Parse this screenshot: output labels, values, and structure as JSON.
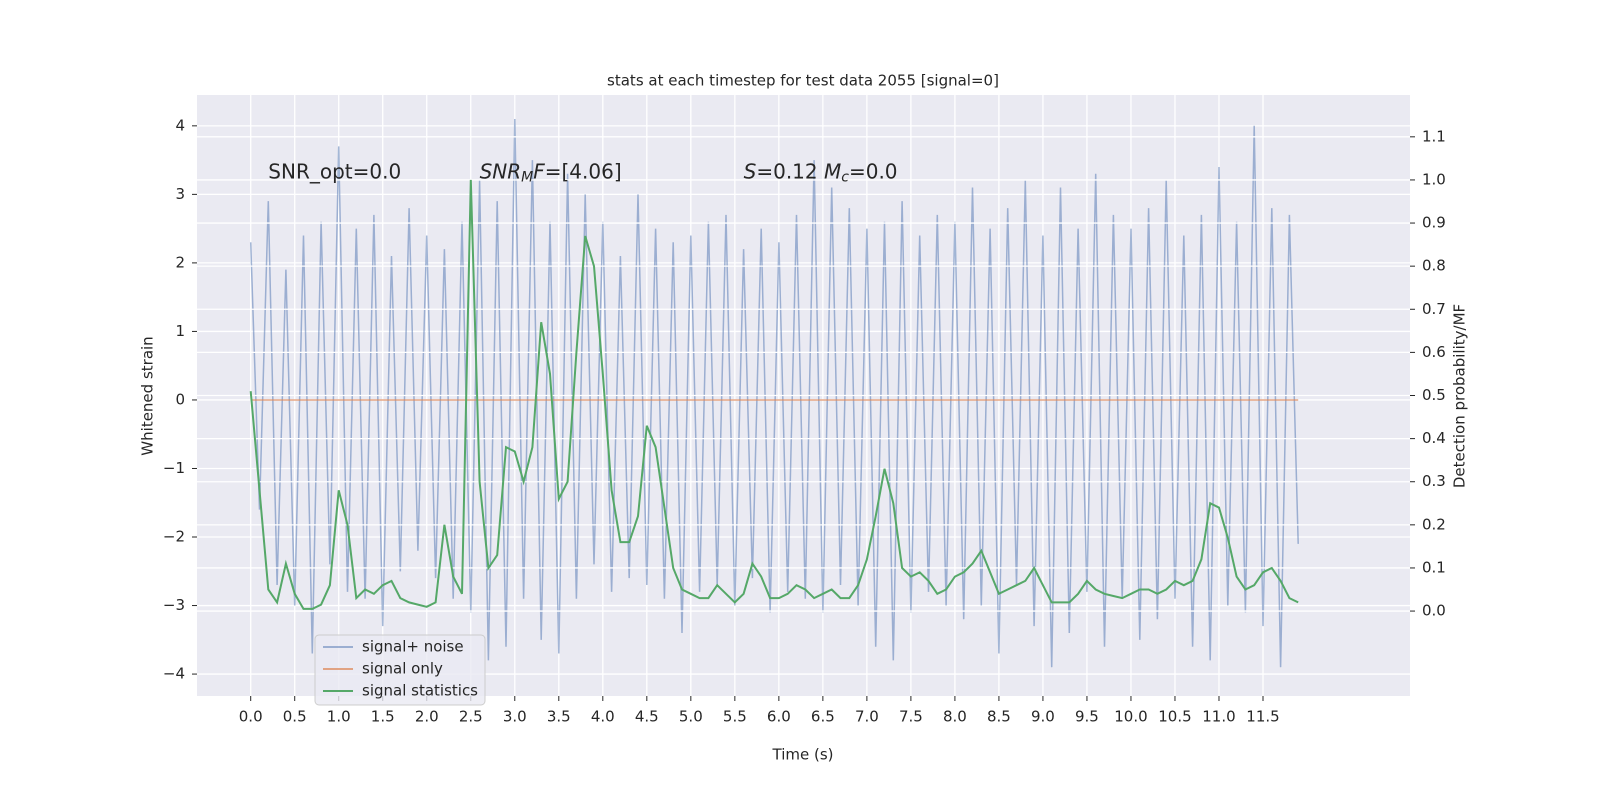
{
  "chart_data": {
    "type": "line",
    "title": "stats at each timestep for test data 2055 [signal=0]",
    "xlabel": "Time (s)",
    "ylabel": "Whitened strain",
    "y2label": "Detection probability/MF",
    "grid": true,
    "legend": "lower left",
    "background": "#eaeaf2",
    "xlim": [
      -0.61,
      13.17
    ],
    "ylim": [
      -4.32,
      4.45
    ],
    "y2lim": [
      -0.197,
      1.197
    ],
    "xticks": [
      {
        "value": 0,
        "label": "0.0"
      },
      {
        "value": 0.5,
        "label": "0.5"
      },
      {
        "value": 1,
        "label": "1.0"
      },
      {
        "value": 1.5,
        "label": "1.5"
      },
      {
        "value": 2,
        "label": "2.0"
      },
      {
        "value": 2.5,
        "label": "2.5"
      },
      {
        "value": 3,
        "label": "3.0"
      },
      {
        "value": 3.5,
        "label": "3.5"
      },
      {
        "value": 4,
        "label": "4.0"
      },
      {
        "value": 4.5,
        "label": "4.5"
      },
      {
        "value": 5,
        "label": "5.0"
      },
      {
        "value": 5.5,
        "label": "5.5"
      },
      {
        "value": 6,
        "label": "6.0"
      },
      {
        "value": 6.5,
        "label": "6.5"
      },
      {
        "value": 7,
        "label": "7.0"
      },
      {
        "value": 7.5,
        "label": "7.5"
      },
      {
        "value": 8,
        "label": "8.0"
      },
      {
        "value": 8.5,
        "label": "8.5"
      },
      {
        "value": 9,
        "label": "9.0"
      },
      {
        "value": 9.5,
        "label": "9.5"
      },
      {
        "value": 10,
        "label": "10.0"
      },
      {
        "value": 10.5,
        "label": "10.5"
      },
      {
        "value": 11,
        "label": "11.0"
      },
      {
        "value": 11.5,
        "label": "11.5"
      }
    ],
    "yticks": [
      {
        "value": -4,
        "label": "−4"
      },
      {
        "value": -3,
        "label": "−3"
      },
      {
        "value": -2,
        "label": "−2"
      },
      {
        "value": -1,
        "label": "−1"
      },
      0,
      1,
      2,
      3,
      4
    ],
    "y2ticks": [
      {
        "value": 0,
        "label": "0.0"
      },
      {
        "value": 0.1,
        "label": "0.1"
      },
      {
        "value": 0.2,
        "label": "0.2"
      },
      {
        "value": 0.3,
        "label": "0.3"
      },
      {
        "value": 0.4,
        "label": "0.4"
      },
      {
        "value": 0.5,
        "label": "0.5"
      },
      {
        "value": 0.6,
        "label": "0.6"
      },
      {
        "value": 0.7,
        "label": "0.7"
      },
      {
        "value": 0.8,
        "label": "0.8"
      },
      {
        "value": 0.9,
        "label": "0.9"
      },
      {
        "value": 1,
        "label": "1.0"
      },
      {
        "value": 1.1,
        "label": "1.1"
      }
    ],
    "annotations": [
      {
        "x": 0.2,
        "y": 3.32,
        "parts": [
          {
            "text": "SNR_opt=0.0",
            "style": "normal"
          }
        ]
      },
      {
        "x": 2.6,
        "y": 3.32,
        "parts": [
          {
            "text": "SNR",
            "style": "italic"
          },
          {
            "text": "M",
            "style": "sub"
          },
          {
            "text": "F=[4.06]",
            "style": "italic-first"
          }
        ]
      },
      {
        "x": 5.6,
        "y": 3.32,
        "parts": [
          {
            "text": "S",
            "style": "italic"
          },
          {
            "text": "=0.12   ",
            "style": "normal"
          },
          {
            "text": "M",
            "style": "italic"
          },
          {
            "text": "c",
            "style": "sub"
          },
          {
            "text": "=0.0",
            "style": "normal"
          }
        ]
      }
    ],
    "x": [
      0,
      0.1,
      0.2,
      0.3,
      0.4,
      0.5,
      0.6,
      0.7,
      0.8,
      0.9,
      1,
      1.1,
      1.2,
      1.3,
      1.4,
      1.5,
      1.6,
      1.7,
      1.8,
      1.9,
      2,
      2.1,
      2.2,
      2.3,
      2.4,
      2.5,
      2.6,
      2.7,
      2.8,
      2.9,
      3,
      3.1,
      3.2,
      3.3,
      3.4,
      3.5,
      3.6,
      3.7,
      3.8,
      3.9,
      4,
      4.1,
      4.2,
      4.3,
      4.4,
      4.5,
      4.6,
      4.7,
      4.8,
      4.9,
      5,
      5.1,
      5.2,
      5.3,
      5.4,
      5.5,
      5.6,
      5.7,
      5.8,
      5.9,
      6,
      6.1,
      6.2,
      6.3,
      6.4,
      6.5,
      6.6,
      6.7,
      6.8,
      6.9,
      7,
      7.1,
      7.2,
      7.3,
      7.4,
      7.5,
      7.6,
      7.7,
      7.8,
      7.9,
      8,
      8.1,
      8.2,
      8.3,
      8.4,
      8.5,
      8.6,
      8.7,
      8.8,
      8.9,
      9,
      9.1,
      9.2,
      9.3,
      9.4,
      9.5,
      9.6,
      9.7,
      9.8,
      9.9,
      10,
      10.1,
      10.2,
      10.3,
      10.4,
      10.5,
      10.6,
      10.7,
      10.8,
      10.9,
      11,
      11.1,
      11.2,
      11.3,
      11.4,
      11.5,
      11.6,
      11.7,
      11.8,
      11.9
    ],
    "series": [
      {
        "name": "signal+ noise",
        "color": "#4c72b0",
        "opacity": 0.5,
        "values": [
          2.3,
          -1.6,
          2.9,
          -2.7,
          1.9,
          -3.0,
          2.4,
          -3.7,
          2.6,
          -2.4,
          3.7,
          -2.8,
          2.5,
          -2.9,
          2.7,
          -3.3,
          2.1,
          -2.5,
          2.8,
          -2.2,
          2.4,
          -2.6,
          2.2,
          -2.9,
          2.6,
          -3.1,
          3.2,
          -3.8,
          2.9,
          -3.6,
          4.1,
          -2.9,
          3.5,
          -3.5,
          2.6,
          -3.7,
          3.3,
          -2.9,
          3.0,
          -2.4,
          2.6,
          -2.8,
          2.1,
          -2.6,
          3.0,
          -2.7,
          2.5,
          -2.9,
          2.3,
          -3.4,
          2.4,
          -2.8,
          2.6,
          -2.7,
          2.7,
          -3.0,
          2.2,
          -2.6,
          2.5,
          -3.1,
          2.3,
          -2.8,
          2.7,
          -2.9,
          3.5,
          -3.1,
          3.1,
          -2.7,
          2.8,
          -3.0,
          2.5,
          -3.6,
          2.6,
          -3.8,
          2.9,
          -3.1,
          2.4,
          -2.8,
          2.7,
          -3.0,
          2.6,
          -3.2,
          3.1,
          -3.0,
          2.5,
          -3.7,
          2.8,
          -2.7,
          3.2,
          -3.3,
          2.4,
          -3.9,
          3.1,
          -3.4,
          2.5,
          -2.8,
          3.3,
          -3.6,
          2.7,
          -2.9,
          2.5,
          -3.5,
          2.8,
          -3.2,
          3.2,
          -2.9,
          2.4,
          -3.6,
          2.7,
          -3.8,
          3.4,
          -3.0,
          2.6,
          -3.1,
          4.0,
          -3.3,
          2.8,
          -3.9,
          2.7,
          -2.1
        ]
      },
      {
        "name": "signal only",
        "color": "#dd8452",
        "opacity": 0.7,
        "values": [
          0,
          0,
          0,
          0,
          0,
          0,
          0,
          0,
          0,
          0,
          0,
          0,
          0,
          0,
          0,
          0,
          0,
          0,
          0,
          0,
          0,
          0,
          0,
          0,
          0,
          0,
          0,
          0,
          0,
          0,
          0,
          0,
          0,
          0,
          0,
          0,
          0,
          0,
          0,
          0,
          0,
          0,
          0,
          0,
          0,
          0,
          0,
          0,
          0,
          0,
          0,
          0,
          0,
          0,
          0,
          0,
          0,
          0,
          0,
          0,
          0,
          0,
          0,
          0,
          0,
          0,
          0,
          0,
          0,
          0,
          0,
          0,
          0,
          0,
          0,
          0,
          0,
          0,
          0,
          0,
          0,
          0,
          0,
          0,
          0,
          0,
          0,
          0,
          0,
          0,
          0,
          0,
          0,
          0,
          0,
          0,
          0,
          0,
          0,
          0,
          0,
          0,
          0,
          0,
          0,
          0,
          0,
          0,
          0,
          0,
          0,
          0,
          0,
          0,
          0,
          0,
          0,
          0,
          0,
          0
        ]
      },
      {
        "name": "signal statistics",
        "color": "#55a868",
        "opacity": 1,
        "axis": "y2",
        "values": [
          0.51,
          0.28,
          0.05,
          0.02,
          0.11,
          0.04,
          0.005,
          0.005,
          0.015,
          0.06,
          0.28,
          0.2,
          0.03,
          0.05,
          0.04,
          0.06,
          0.07,
          0.03,
          0.02,
          0.015,
          0.01,
          0.02,
          0.2,
          0.08,
          0.04,
          1.0,
          0.3,
          0.1,
          0.13,
          0.38,
          0.37,
          0.3,
          0.38,
          0.67,
          0.55,
          0.26,
          0.3,
          0.6,
          0.87,
          0.8,
          0.55,
          0.28,
          0.16,
          0.16,
          0.22,
          0.43,
          0.38,
          0.24,
          0.1,
          0.05,
          0.04,
          0.03,
          0.03,
          0.06,
          0.04,
          0.02,
          0.04,
          0.11,
          0.08,
          0.03,
          0.03,
          0.04,
          0.06,
          0.05,
          0.03,
          0.04,
          0.05,
          0.03,
          0.03,
          0.06,
          0.12,
          0.22,
          0.33,
          0.25,
          0.1,
          0.08,
          0.09,
          0.07,
          0.04,
          0.05,
          0.08,
          0.09,
          0.11,
          0.14,
          0.09,
          0.04,
          0.05,
          0.06,
          0.07,
          0.1,
          0.06,
          0.02,
          0.02,
          0.02,
          0.04,
          0.07,
          0.05,
          0.04,
          0.035,
          0.03,
          0.04,
          0.05,
          0.05,
          0.04,
          0.05,
          0.07,
          0.06,
          0.07,
          0.12,
          0.25,
          0.24,
          0.17,
          0.08,
          0.05,
          0.06,
          0.09,
          0.1,
          0.07,
          0.03,
          0.02
        ]
      }
    ]
  }
}
